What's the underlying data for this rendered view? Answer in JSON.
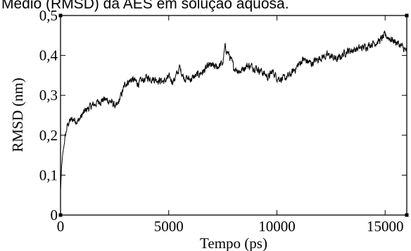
{
  "caption": "Médio (RMSD) da AES em solução aquosa.",
  "chart_data": {
    "type": "line",
    "xlabel": "Tempo (ps)",
    "ylabel": "RMSD (nm)",
    "xlim": [
      0,
      16000
    ],
    "ylim": [
      0,
      0.5
    ],
    "x_ticks": [
      0,
      5000,
      10000,
      15000
    ],
    "x_tick_labels": [
      "0",
      "5000",
      "10000",
      "15000"
    ],
    "y_ticks": [
      0,
      0.1,
      0.2,
      0.3,
      0.4,
      0.5
    ],
    "y_tick_labels": [
      "0",
      "0,1",
      "0,2",
      "0,3",
      "0,4",
      "0,5"
    ],
    "grid": false,
    "line_color": "#000000",
    "series": [
      {
        "x": [
          0,
          50,
          100,
          200,
          300,
          400,
          600,
          800,
          1000,
          1200,
          1500,
          1800,
          2000,
          2300,
          2600,
          2800,
          3000,
          3300,
          3600,
          4000,
          4400,
          4800,
          5000,
          5200,
          5400,
          5500,
          5700,
          6000,
          6300,
          6600,
          6900,
          7200,
          7500,
          7600,
          7800,
          8000,
          8300,
          8600,
          9000,
          9300,
          9600,
          9800,
          10000,
          10300,
          10600,
          10900,
          11200,
          11600,
          12000,
          12400,
          12800,
          13200,
          13600,
          14000,
          14400,
          14700,
          15000,
          15300,
          15600,
          16000
        ],
        "values": [
          0.06,
          0.12,
          0.15,
          0.19,
          0.22,
          0.235,
          0.24,
          0.235,
          0.25,
          0.265,
          0.275,
          0.285,
          0.29,
          0.285,
          0.27,
          0.3,
          0.33,
          0.34,
          0.33,
          0.345,
          0.34,
          0.335,
          0.345,
          0.335,
          0.355,
          0.37,
          0.345,
          0.34,
          0.35,
          0.36,
          0.375,
          0.37,
          0.38,
          0.42,
          0.4,
          0.37,
          0.36,
          0.375,
          0.37,
          0.36,
          0.345,
          0.36,
          0.345,
          0.34,
          0.35,
          0.37,
          0.39,
          0.38,
          0.395,
          0.4,
          0.39,
          0.41,
          0.415,
          0.42,
          0.43,
          0.435,
          0.45,
          0.44,
          0.43,
          0.41
        ]
      }
    ]
  }
}
